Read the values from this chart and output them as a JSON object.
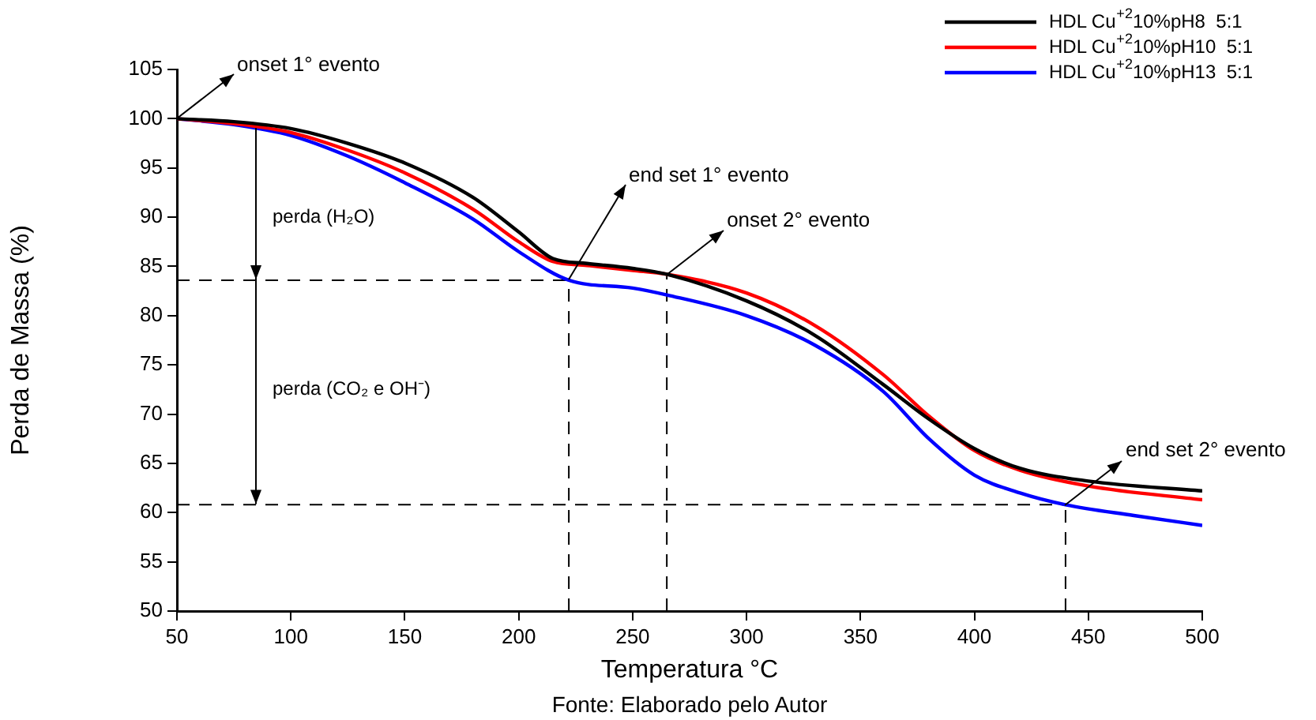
{
  "chart_data": {
    "type": "line",
    "xlabel": "Temperatura °C",
    "ylabel": "Perda de Massa (%)",
    "xlim": [
      50,
      500
    ],
    "xticks": [
      50,
      100,
      150,
      200,
      250,
      300,
      350,
      400,
      450,
      500
    ],
    "ylim": [
      50,
      105
    ],
    "yticks": [
      50,
      55,
      60,
      65,
      70,
      75,
      80,
      85,
      90,
      95,
      100,
      105
    ],
    "grid": false,
    "legend": "top right",
    "marker": "none",
    "line_style": "solid",
    "series": [
      {
        "name": "HDL Cu$^{+2}$10%pH8  5:1",
        "color": "#000000",
        "x": [
          50,
          75,
          100,
          125,
          150,
          180,
          200,
          215,
          230,
          250,
          265,
          300,
          330,
          360,
          380,
          400,
          420,
          450,
          500
        ],
        "values": [
          100,
          99.7,
          99,
          97.5,
          95.5,
          92,
          88.5,
          85.8,
          85.3,
          84.8,
          84.2,
          81.5,
          78,
          73,
          69.5,
          66.5,
          64.5,
          63.2,
          62.2
        ]
      },
      {
        "name": "HDL Cu$^{+2}$10%pH10  5:1",
        "color": "#ff0000",
        "x": [
          50,
          75,
          100,
          125,
          150,
          180,
          200,
          215,
          230,
          250,
          265,
          300,
          330,
          360,
          380,
          400,
          420,
          450,
          500
        ],
        "values": [
          100,
          99.5,
          98.6,
          96.8,
          94.5,
          90.8,
          87.5,
          85.5,
          85.1,
          84.6,
          84.2,
          82.3,
          79,
          74,
          69.8,
          66.3,
          64.3,
          62.7,
          61.3
        ]
      },
      {
        "name": "HDL Cu$^{+2}$10%pH13  5:1",
        "color": "#0000ff",
        "x": [
          50,
          75,
          100,
          125,
          150,
          180,
          200,
          222,
          250,
          265,
          300,
          330,
          360,
          380,
          400,
          420,
          440,
          470,
          500
        ],
        "values": [
          100,
          99.4,
          98.3,
          96.2,
          93.5,
          89.8,
          86.5,
          83.6,
          82.8,
          82.1,
          80,
          77,
          72.3,
          67.5,
          63.8,
          62,
          60.8,
          59.7,
          58.7
        ]
      }
    ],
    "ref_lines": [
      {
        "axis": "y",
        "value": 83.6,
        "color": "#000000",
        "line_style": "dashed"
      },
      {
        "axis": "y",
        "value": 60.8,
        "color": "#000000",
        "line_style": "dashed"
      },
      {
        "axis": "x",
        "value": 222,
        "color": "#000000",
        "line_style": "dashed"
      },
      {
        "axis": "x",
        "value": 265,
        "color": "#000000",
        "line_style": "dashed"
      },
      {
        "axis": "x",
        "value": 440,
        "color": "#000000",
        "line_style": "dashed"
      }
    ],
    "annotations": [
      {
        "text": "onset 1° evento",
        "x": 50,
        "y": 100
      },
      {
        "text": "end set 1° evento",
        "x": 222,
        "y": 83.6
      },
      {
        "text": "onset 2° evento",
        "x": 265,
        "y": 84.2
      },
      {
        "text": "end set 2° evento",
        "x": 440,
        "y": 60.8
      },
      "perda (H₂O)",
      "perda (CO₂ e OH⁻)",
      "Fonte: Elaborado pelo Autor"
    ]
  }
}
